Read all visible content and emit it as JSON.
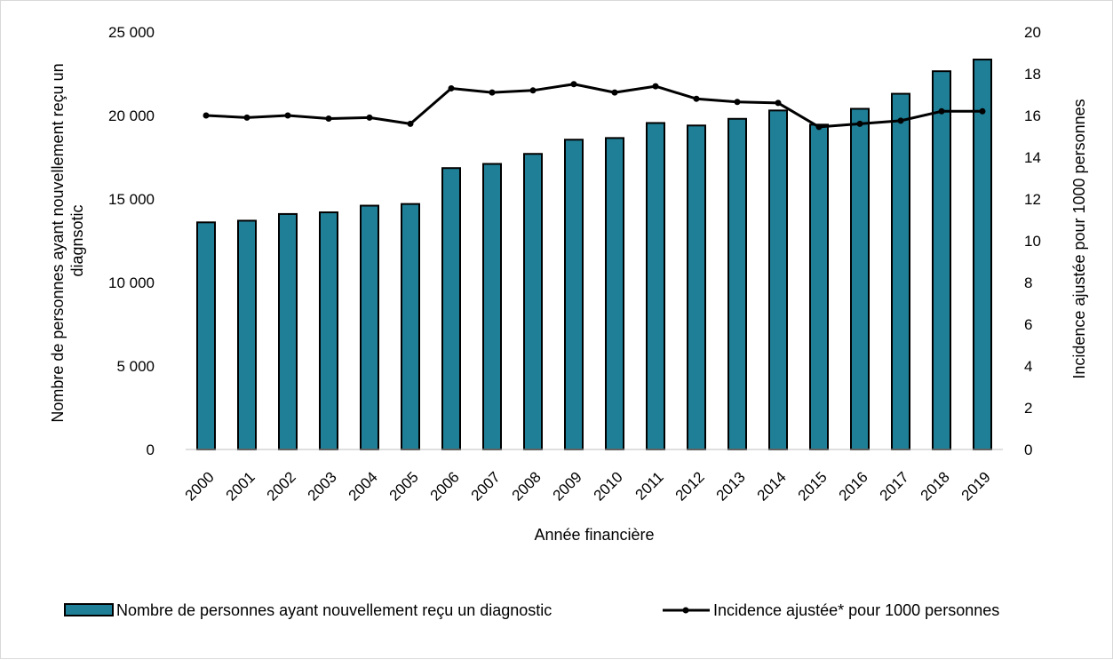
{
  "chart_data": {
    "type": "bar",
    "xlabel": "Année financière",
    "ylabel": "Nombre de personnes ayant nouvellement reçu un diagnsotic",
    "ylabel_lines": [
      "Nombre de personnes ayant nouvellement reçu un",
      "diagnsotic"
    ],
    "y2label": "Incidence ajustée pour 1000 personnes",
    "categories": [
      "2000",
      "2001",
      "2002",
      "2003",
      "2004",
      "2005",
      "2006",
      "2007",
      "2008",
      "2009",
      "2010",
      "2011",
      "2012",
      "2013",
      "2014",
      "2015",
      "2016",
      "2017",
      "2018",
      "2019"
    ],
    "ylim": [
      0,
      25000
    ],
    "y_ticks": [
      0,
      5000,
      10000,
      15000,
      20000,
      25000
    ],
    "y_tick_labels": [
      "0",
      "5 000",
      "10 000",
      "15 000",
      "20 000",
      "25 000"
    ],
    "y2lim": [
      0,
      20
    ],
    "y2_ticks": [
      0,
      2,
      4,
      6,
      8,
      10,
      12,
      14,
      16,
      18,
      20
    ],
    "y2_tick_labels": [
      "0",
      "2",
      "4",
      "6",
      "8",
      "10",
      "12",
      "14",
      "16",
      "18",
      "20"
    ],
    "grid": false,
    "legend_position": "bottom",
    "series": [
      {
        "name": "Nombre de personnes ayant nouvellement reçu un diagnostic",
        "type": "bar",
        "axis": "left",
        "color": "#1f7f96",
        "values": [
          13600,
          13700,
          14100,
          14200,
          14600,
          14700,
          16850,
          17100,
          17700,
          18550,
          18650,
          19550,
          19400,
          19800,
          20300,
          19450,
          20400,
          21300,
          22650,
          23350
        ]
      },
      {
        "name": "Incidence ajustée* pour 1000 personnes",
        "type": "line",
        "axis": "right",
        "color": "#000000",
        "values": [
          16.0,
          15.9,
          16.0,
          15.85,
          15.9,
          15.6,
          17.3,
          17.1,
          17.2,
          17.5,
          17.1,
          17.4,
          16.8,
          16.65,
          16.6,
          15.45,
          15.6,
          15.75,
          16.2,
          16.2
        ]
      }
    ]
  }
}
